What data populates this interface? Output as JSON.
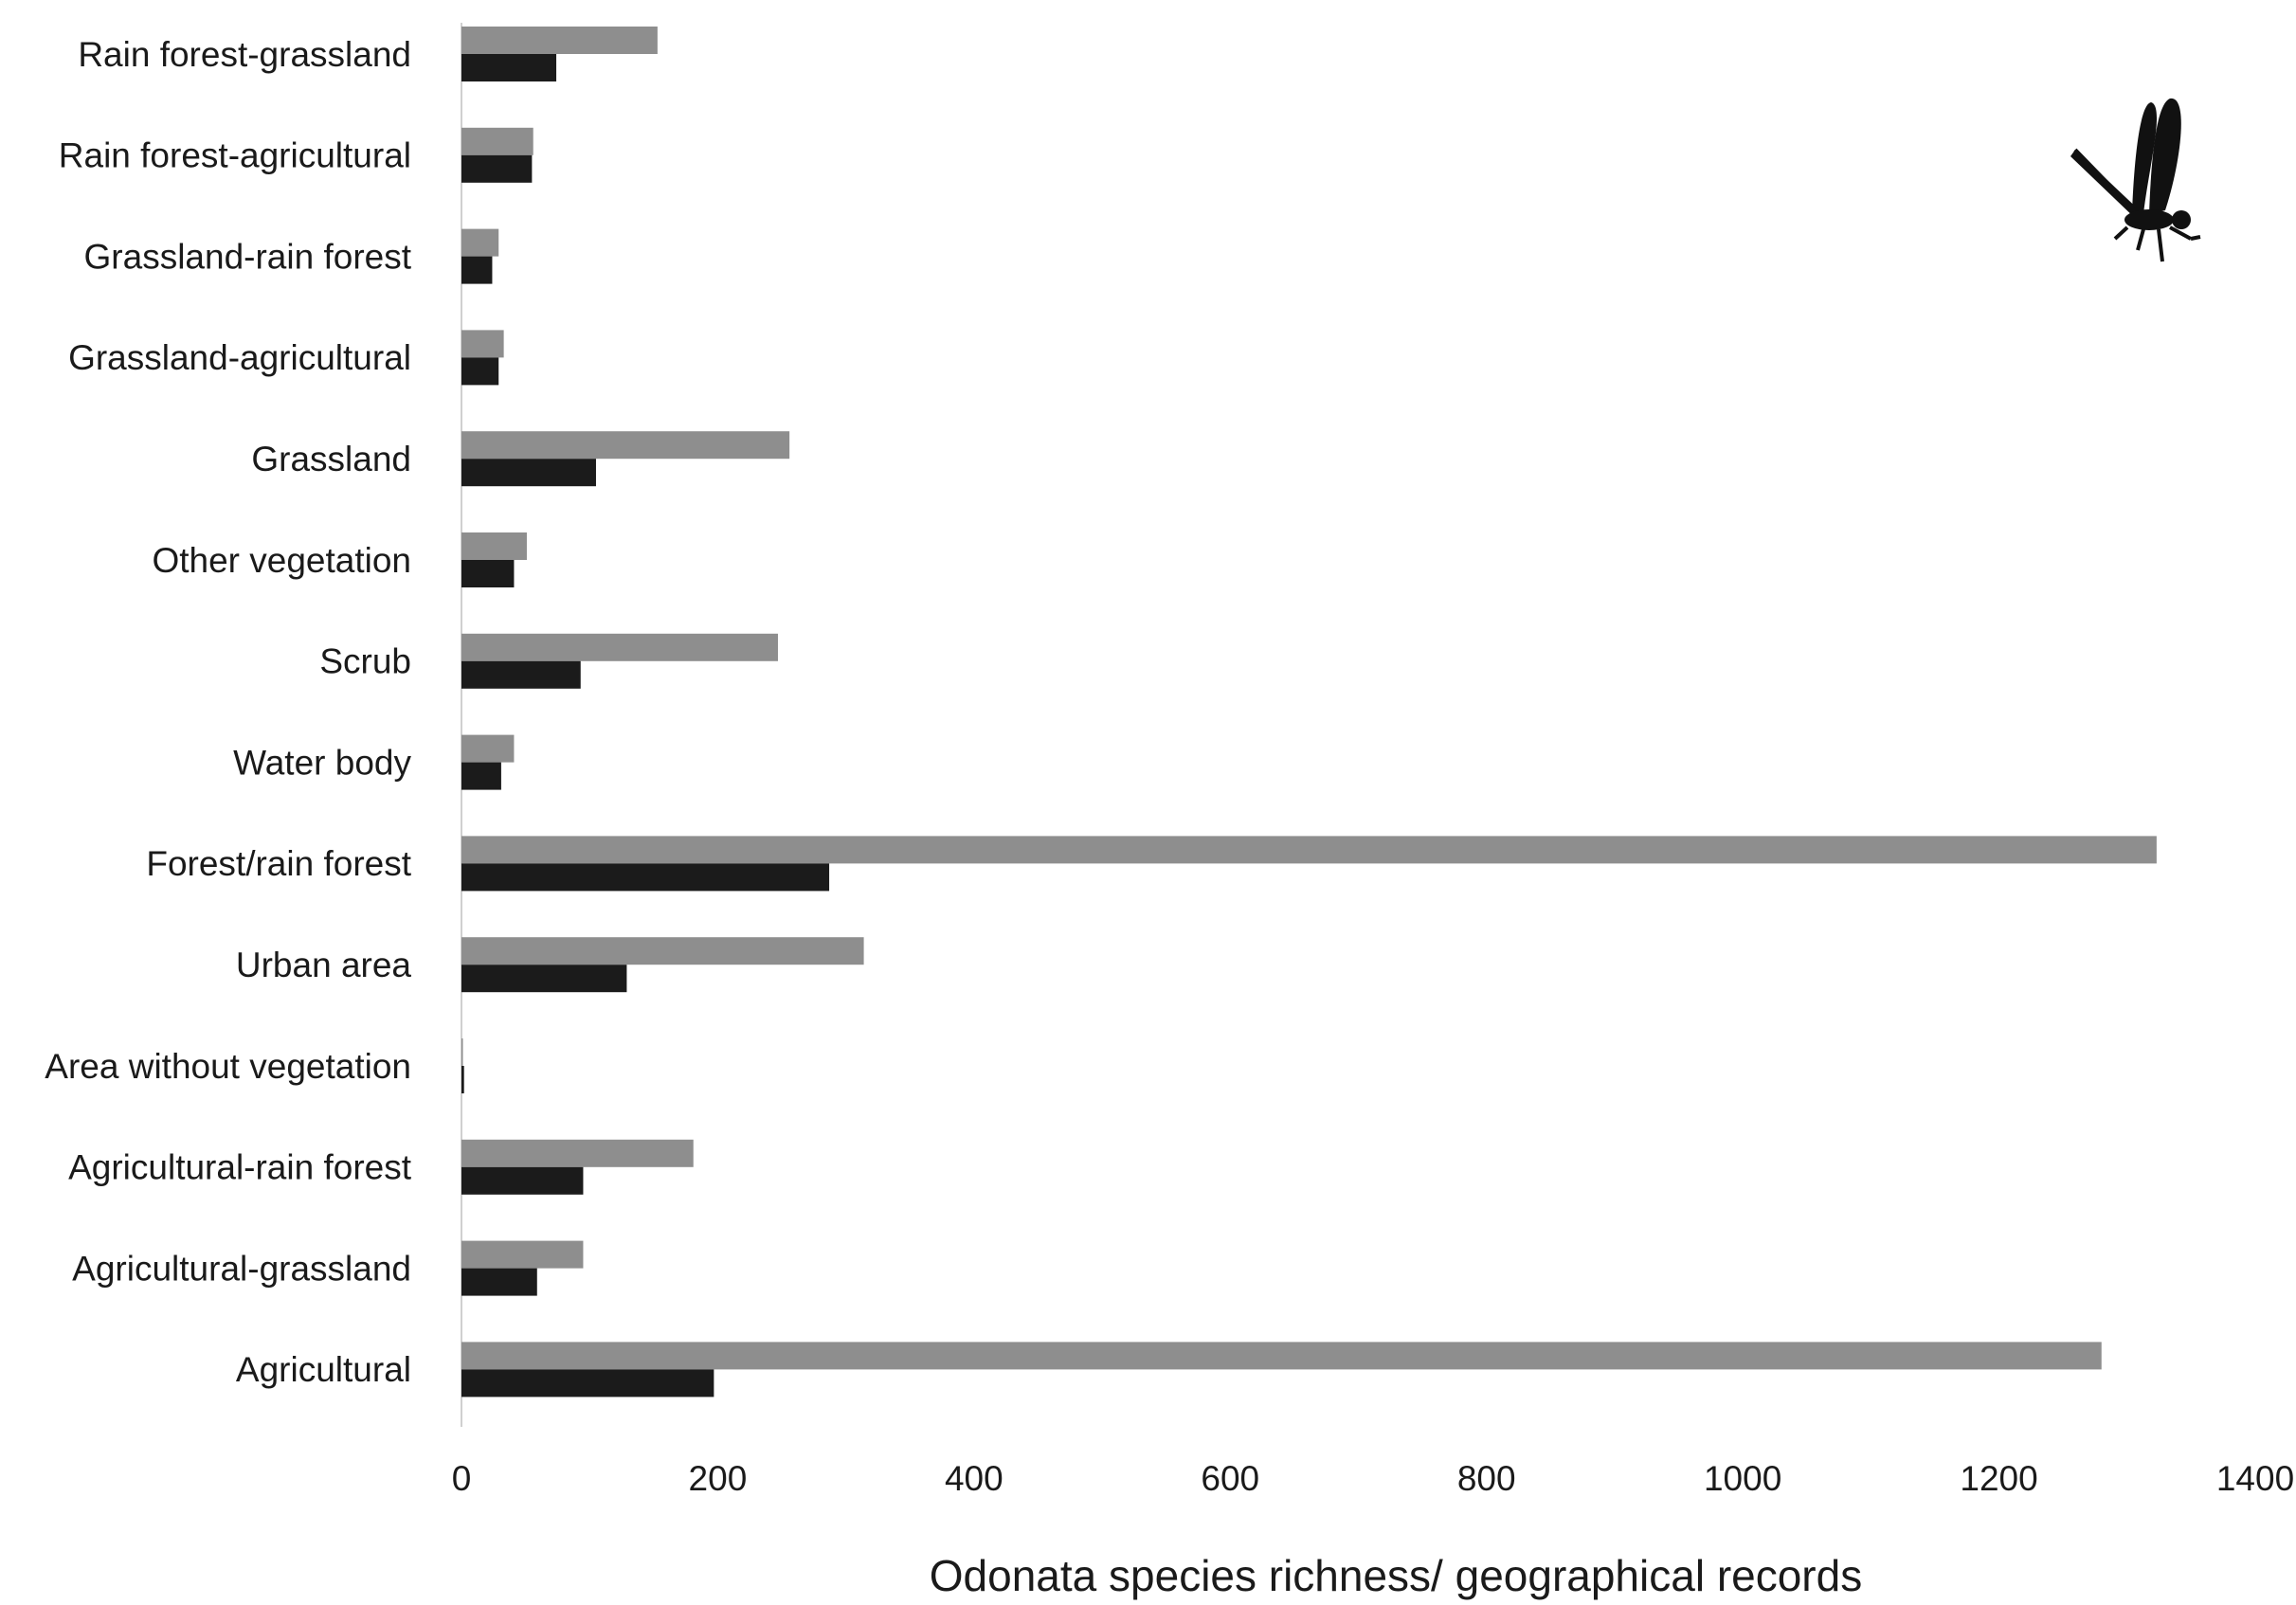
{
  "chart_data": {
    "type": "bar",
    "orientation": "horizontal",
    "x_label": "Odonata species richness/ geographical records",
    "categories": [
      "Rain forest-grassland",
      "Rain forest-agricultural",
      "Grassland-rain forest",
      "Grassland-agricultural",
      "Grassland",
      "Other vegetation",
      "Scrub",
      "Water body",
      "Forest/rain forest",
      "Urban area",
      "Area without vegetation",
      "Agricultural-rain forest",
      "Agricultural-grassland",
      "Agricultural"
    ],
    "series": [
      {
        "color": "#8e8e8e",
        "values": [
          153,
          56,
          29,
          33,
          256,
          51,
          247,
          41,
          1323,
          314,
          1,
          181,
          95,
          1280
        ]
      },
      {
        "color": "#1b1b1b",
        "values": [
          74,
          55,
          24,
          29,
          105,
          41,
          93,
          31,
          287,
          129,
          2,
          95,
          59,
          197
        ]
      }
    ],
    "xlim": [
      0,
      1400
    ],
    "xticks": [
      0,
      200,
      400,
      600,
      800,
      1000,
      1200,
      1400
    ],
    "grid": false
  }
}
